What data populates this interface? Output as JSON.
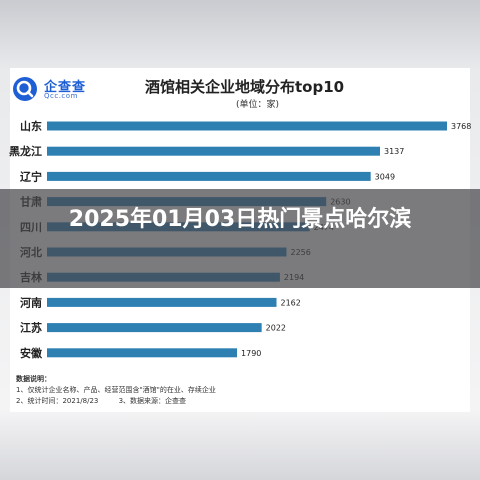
{
  "brand": {
    "name": "企查查",
    "url": "Qcc.com"
  },
  "headline": "2025年01月03日热门景点哈尔滨",
  "colors": {
    "bar": "#2e7fb2",
    "brand": "#1f5fd6"
  },
  "chart_data": {
    "type": "bar",
    "orientation": "horizontal",
    "title": "酒馆相关企业地域分布top10",
    "subtitle": "(单位：家)",
    "categories": [
      "山东",
      "黑龙江",
      "辽宁",
      "甘肃",
      "四川",
      "河北",
      "吉林",
      "河南",
      "江苏",
      "安徽"
    ],
    "values": [
      3768,
      3137,
      3049,
      2630,
      2474,
      2256,
      2194,
      2162,
      2022,
      1790
    ],
    "value_labels": [
      "3768",
      "3137",
      "3049",
      "2630",
      "2474",
      "2256",
      "2194",
      "2162",
      "2022",
      "1790"
    ],
    "xlim": [
      0,
      3768
    ],
    "grid": false,
    "legend": "none"
  },
  "notes": {
    "title": "数据说明：",
    "line1": "1、仅统计企业名称、产品、经营范围含\"酒馆\"的在业、存续企业",
    "line2a": "2、统计时间：2021/8/23",
    "line2b": "3、数据来源：企查查"
  }
}
